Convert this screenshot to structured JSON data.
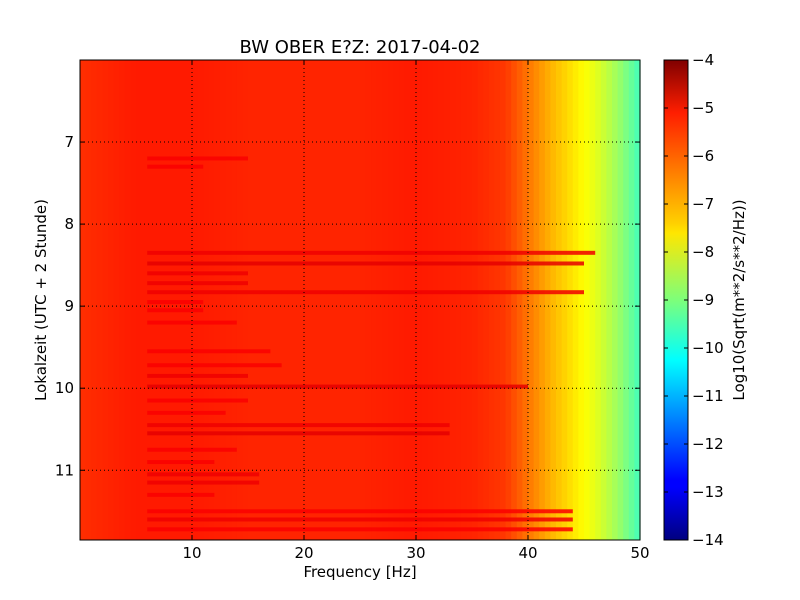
{
  "chart_data": {
    "type": "heatmap",
    "title": "BW OBER E?Z: 2017-04-02",
    "xlabel": "Frequency [Hz]",
    "ylabel": "Lokalzeit (UTC + 2 Stunde)",
    "xlim": [
      0,
      50
    ],
    "ylim": [
      6,
      11.85
    ],
    "y_inverted": true,
    "x_ticks": [
      10,
      20,
      30,
      40,
      50
    ],
    "y_ticks": [
      7,
      8,
      9,
      10,
      11
    ],
    "grid": true,
    "colormap": "jet",
    "colorbar": {
      "label": "Log10(Sqrt(m**2/s**2/Hz))",
      "range": [
        -14,
        -4
      ],
      "ticks": [
        -4,
        -5,
        -6,
        -7,
        -8,
        -9,
        -10,
        -11,
        -12,
        -13,
        -14
      ]
    },
    "frequency_profile": {
      "frequency_hz": [
        0,
        5,
        10,
        15,
        20,
        25,
        30,
        35,
        38,
        40,
        42,
        44,
        46,
        48,
        50
      ],
      "log10_amplitude": [
        -5.7,
        -5.5,
        -5.5,
        -5.6,
        -5.6,
        -5.6,
        -5.5,
        -5.6,
        -5.8,
        -6.4,
        -7.0,
        -7.5,
        -8.0,
        -8.7,
        -9.6
      ]
    },
    "bands": [
      {
        "time": 7.2,
        "f_from": 6,
        "f_to": 15,
        "log10_amplitude": -5.2
      },
      {
        "time": 7.3,
        "f_from": 6,
        "f_to": 11,
        "log10_amplitude": -5.2
      },
      {
        "time": 8.35,
        "f_from": 6,
        "f_to": 46,
        "log10_amplitude": -5.1
      },
      {
        "time": 8.48,
        "f_from": 6,
        "f_to": 45,
        "log10_amplitude": -5.0
      },
      {
        "time": 8.6,
        "f_from": 6,
        "f_to": 15,
        "log10_amplitude": -5.1
      },
      {
        "time": 8.72,
        "f_from": 6,
        "f_to": 15,
        "log10_amplitude": -5.1
      },
      {
        "time": 8.83,
        "f_from": 6,
        "f_to": 45,
        "log10_amplitude": -5.1
      },
      {
        "time": 8.95,
        "f_from": 6,
        "f_to": 11,
        "log10_amplitude": -5.2
      },
      {
        "time": 9.05,
        "f_from": 6,
        "f_to": 11,
        "log10_amplitude": -5.2
      },
      {
        "time": 9.2,
        "f_from": 6,
        "f_to": 14,
        "log10_amplitude": -5.2
      },
      {
        "time": 9.55,
        "f_from": 6,
        "f_to": 17,
        "log10_amplitude": -5.2
      },
      {
        "time": 9.72,
        "f_from": 6,
        "f_to": 18,
        "log10_amplitude": -5.2
      },
      {
        "time": 9.85,
        "f_from": 6,
        "f_to": 15,
        "log10_amplitude": -5.1
      },
      {
        "time": 9.98,
        "f_from": 6,
        "f_to": 40,
        "log10_amplitude": -5.0
      },
      {
        "time": 10.15,
        "f_from": 6,
        "f_to": 15,
        "log10_amplitude": -5.2
      },
      {
        "time": 10.3,
        "f_from": 6,
        "f_to": 13,
        "log10_amplitude": -5.2
      },
      {
        "time": 10.45,
        "f_from": 6,
        "f_to": 33,
        "log10_amplitude": -5.1
      },
      {
        "time": 10.55,
        "f_from": 6,
        "f_to": 33,
        "log10_amplitude": -5.0
      },
      {
        "time": 10.75,
        "f_from": 6,
        "f_to": 14,
        "log10_amplitude": -5.2
      },
      {
        "time": 10.9,
        "f_from": 6,
        "f_to": 12,
        "log10_amplitude": -5.2
      },
      {
        "time": 11.05,
        "f_from": 6,
        "f_to": 16,
        "log10_amplitude": -5.1
      },
      {
        "time": 11.15,
        "f_from": 6,
        "f_to": 16,
        "log10_amplitude": -5.1
      },
      {
        "time": 11.3,
        "f_from": 6,
        "f_to": 12,
        "log10_amplitude": -5.2
      },
      {
        "time": 11.5,
        "f_from": 6,
        "f_to": 44,
        "log10_amplitude": -5.2
      },
      {
        "time": 11.6,
        "f_from": 6,
        "f_to": 44,
        "log10_amplitude": -5.1
      },
      {
        "time": 11.72,
        "f_from": 6,
        "f_to": 44,
        "log10_amplitude": -5.2
      }
    ]
  }
}
